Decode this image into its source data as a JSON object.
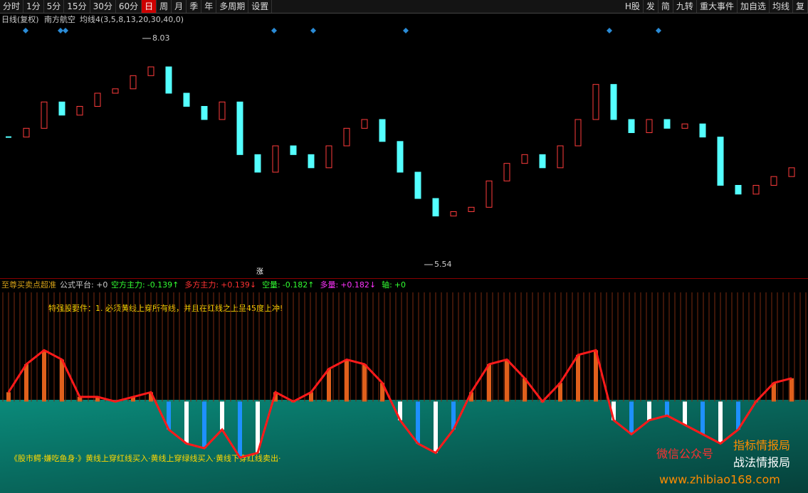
{
  "toolbar": {
    "left": [
      "分时",
      "1分",
      "5分",
      "15分",
      "30分",
      "60分",
      "日",
      "周",
      "月",
      "季",
      "年",
      "多周期",
      "设置"
    ],
    "right": [
      "H股",
      "发",
      "简",
      "九转",
      "重大事件",
      "加自选",
      "均线",
      "复"
    ]
  },
  "price_panel": {
    "period": "日线(复权)",
    "name": "南方航空",
    "ma": "均线4(3,5,8,13,20,30,40,0)",
    "high_label": "8.03",
    "low_label": "5.54",
    "marker": "涨",
    "closes": [
      6.9,
      7.0,
      7.3,
      7.15,
      7.25,
      7.4,
      7.45,
      7.6,
      7.7,
      7.4,
      7.25,
      7.1,
      7.3,
      6.7,
      6.5,
      6.8,
      6.7,
      6.55,
      6.8,
      7.0,
      7.1,
      6.85,
      6.5,
      6.2,
      6.0,
      6.05,
      6.1,
      6.4,
      6.6,
      6.7,
      6.55,
      6.8,
      7.1,
      7.5,
      7.1,
      6.95,
      7.1,
      7.0,
      7.05,
      6.9,
      6.35,
      6.25,
      6.35,
      6.45,
      6.55
    ],
    "ylim": [
      5.3,
      8.3
    ]
  },
  "indicator_panel": {
    "name": "至尊买卖点超准",
    "platform": "公式平台: +0",
    "items": [
      {
        "label": "空方主力:",
        "value": "-0.139↑",
        "color": "#33ff33"
      },
      {
        "label": "多方主力:",
        "value": "+0.139↓",
        "color": "#ff3333"
      },
      {
        "label": "空量:",
        "value": "-0.182↑",
        "color": "#33ff33"
      },
      {
        "label": "多量:",
        "value": "+0.182↓",
        "color": "#ff33ff"
      },
      {
        "label": "轴:",
        "value": "+0",
        "color": "#33ff33"
      }
    ],
    "note": "特强股要件：1. 必须黄线上穿所有线，并且在红线之上呈45度上冲!",
    "footer": "《股市鳄·嫌吃鱼身·》黄线上穿红线买入·黄线上穿绿线买入·黄线下穿红线卖出·",
    "values": [
      0.1,
      0.4,
      0.55,
      0.45,
      0.05,
      0.05,
      0,
      0.05,
      0.1,
      -0.3,
      -0.45,
      -0.5,
      -0.3,
      -0.6,
      -0.55,
      0.1,
      0,
      0.1,
      0.35,
      0.45,
      0.4,
      0.2,
      -0.2,
      -0.45,
      -0.55,
      -0.3,
      0.1,
      0.4,
      0.45,
      0.25,
      0,
      0.2,
      0.5,
      0.55,
      -0.2,
      -0.35,
      -0.2,
      -0.15,
      -0.25,
      -0.35,
      -0.45,
      -0.3,
      0,
      0.2,
      0.25
    ],
    "ylim": [
      -0.98,
      1.17
    ]
  },
  "watermark": {
    "wechat": "微信公众号",
    "line1": "指标情报局",
    "line2": "战法情报局",
    "url": "www.zhibiao168.com"
  }
}
